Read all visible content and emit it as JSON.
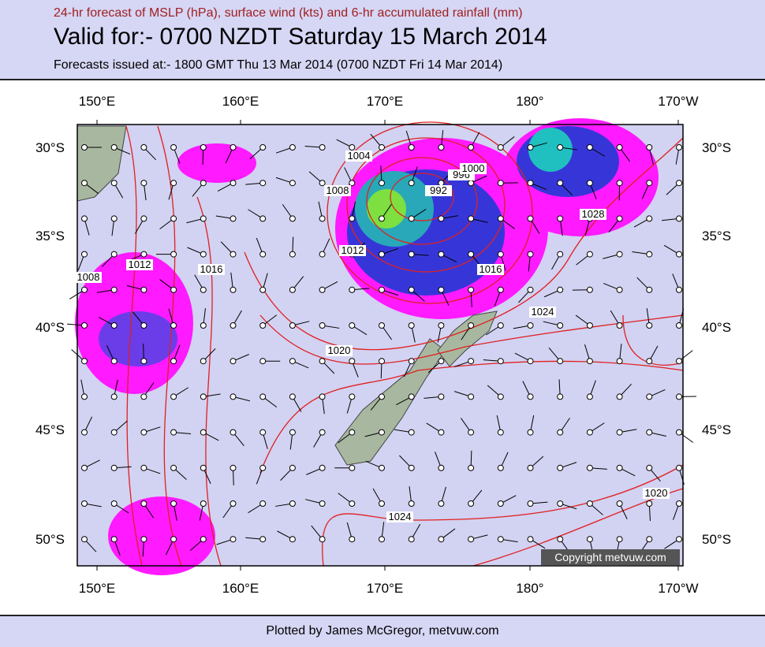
{
  "header": {
    "subtitle": "24-hr forecast of MSLP (hPa), surface wind (kts) and 6-hr accumulated rainfall (mm)",
    "title": "Valid for:- 0700 NZDT Saturday 15 March 2014",
    "issued": "Forecasts issued at:- 1800 GMT Thu 13 Mar 2014 (0700 NZDT Fri 14 Mar 2014)"
  },
  "map": {
    "lon_labels": [
      "150°E",
      "160°E",
      "170°E",
      "180°",
      "170°W"
    ],
    "lat_labels": [
      "30°S",
      "35°S",
      "40°S",
      "45°S",
      "50°S"
    ],
    "isobar_labels": [
      "1004",
      "996",
      "1000",
      "992",
      "1008",
      "1012",
      "1016",
      "1028",
      "1024",
      "1020",
      "1024",
      "1020",
      "1008",
      "1012",
      "1016"
    ],
    "copyright": "Copyright metvuw.com"
  },
  "footer": {
    "credit": "Plotted by James McGregor, metvuw.com"
  }
}
